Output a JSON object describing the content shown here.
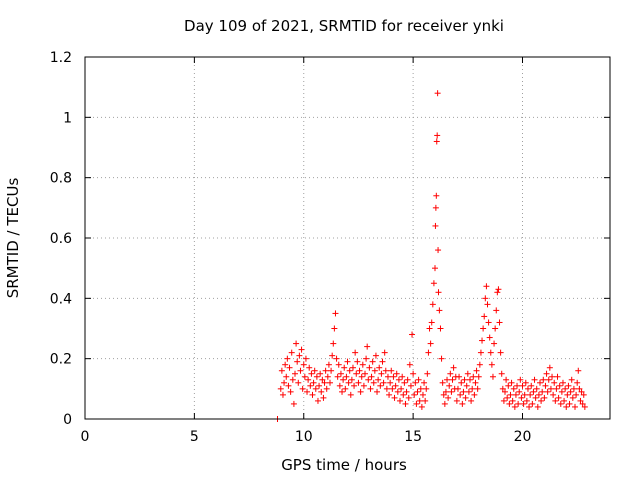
{
  "chart_data": {
    "type": "scatter",
    "title": "Day 109 of 2021, SRMTID for receiver ynki",
    "xlabel": "GPS time / hours",
    "ylabel": "SRMTID / TECUs",
    "xlim": [
      0,
      24
    ],
    "ylim": [
      0,
      1.2
    ],
    "xticks": [
      0,
      5,
      10,
      15,
      20
    ],
    "xtick_labels": [
      "0",
      "5",
      "10",
      "15",
      "20"
    ],
    "yticks": [
      0,
      0.2,
      0.4,
      0.6,
      0.8,
      1.0,
      1.2
    ],
    "ytick_labels": [
      "0",
      "0.2",
      "0.4",
      "0.6",
      "0.8",
      "1",
      "1.2"
    ],
    "grid": true,
    "marker": "plus",
    "color": "#ff0000",
    "series": [
      {
        "name": "SRMTID",
        "points": [
          [
            8.8,
            0.0
          ],
          [
            8.95,
            0.1
          ],
          [
            9.0,
            0.16
          ],
          [
            9.05,
            0.08
          ],
          [
            9.1,
            0.12
          ],
          [
            9.15,
            0.18
          ],
          [
            9.2,
            0.14
          ],
          [
            9.25,
            0.2
          ],
          [
            9.3,
            0.11
          ],
          [
            9.35,
            0.17
          ],
          [
            9.4,
            0.09
          ],
          [
            9.45,
            0.22
          ],
          [
            9.5,
            0.13
          ],
          [
            9.55,
            0.05
          ],
          [
            9.6,
            0.15
          ],
          [
            9.65,
            0.25
          ],
          [
            9.7,
            0.19
          ],
          [
            9.75,
            0.12
          ],
          [
            9.8,
            0.21
          ],
          [
            9.85,
            0.16
          ],
          [
            9.9,
            0.23
          ],
          [
            9.95,
            0.1
          ],
          [
            10.0,
            0.18
          ],
          [
            10.05,
            0.14
          ],
          [
            10.1,
            0.2
          ],
          [
            10.15,
            0.09
          ],
          [
            10.2,
            0.13
          ],
          [
            10.25,
            0.17
          ],
          [
            10.3,
            0.11
          ],
          [
            10.35,
            0.15
          ],
          [
            10.4,
            0.08
          ],
          [
            10.45,
            0.12
          ],
          [
            10.5,
            0.16
          ],
          [
            10.55,
            0.1
          ],
          [
            10.6,
            0.14
          ],
          [
            10.65,
            0.06
          ],
          [
            10.7,
            0.11
          ],
          [
            10.75,
            0.15
          ],
          [
            10.8,
            0.09
          ],
          [
            10.85,
            0.13
          ],
          [
            10.9,
            0.07
          ],
          [
            10.95,
            0.12
          ],
          [
            11.0,
            0.16
          ],
          [
            11.05,
            0.1
          ],
          [
            11.1,
            0.14
          ],
          [
            11.15,
            0.18
          ],
          [
            11.2,
            0.12
          ],
          [
            11.25,
            0.16
          ],
          [
            11.3,
            0.21
          ],
          [
            11.35,
            0.25
          ],
          [
            11.4,
            0.3
          ],
          [
            11.45,
            0.35
          ],
          [
            11.5,
            0.2
          ],
          [
            11.55,
            0.14
          ],
          [
            11.6,
            0.18
          ],
          [
            11.65,
            0.11
          ],
          [
            11.7,
            0.15
          ],
          [
            11.75,
            0.09
          ],
          [
            11.8,
            0.13
          ],
          [
            11.85,
            0.17
          ],
          [
            11.9,
            0.1
          ],
          [
            11.95,
            0.14
          ],
          [
            12.0,
            0.19
          ],
          [
            12.05,
            0.12
          ],
          [
            12.1,
            0.16
          ],
          [
            12.15,
            0.08
          ],
          [
            12.2,
            0.13
          ],
          [
            12.25,
            0.17
          ],
          [
            12.3,
            0.11
          ],
          [
            12.35,
            0.22
          ],
          [
            12.4,
            0.15
          ],
          [
            12.45,
            0.19
          ],
          [
            12.5,
            0.12
          ],
          [
            12.55,
            0.16
          ],
          [
            12.6,
            0.09
          ],
          [
            12.65,
            0.14
          ],
          [
            12.7,
            0.18
          ],
          [
            12.75,
            0.11
          ],
          [
            12.8,
            0.15
          ],
          [
            12.85,
            0.2
          ],
          [
            12.9,
            0.24
          ],
          [
            12.95,
            0.13
          ],
          [
            13.0,
            0.17
          ],
          [
            13.05,
            0.1
          ],
          [
            13.1,
            0.14
          ],
          [
            13.15,
            0.19
          ],
          [
            13.2,
            0.12
          ],
          [
            13.25,
            0.16
          ],
          [
            13.3,
            0.21
          ],
          [
            13.35,
            0.09
          ],
          [
            13.4,
            0.13
          ],
          [
            13.45,
            0.17
          ],
          [
            13.5,
            0.11
          ],
          [
            13.55,
            0.15
          ],
          [
            13.6,
            0.19
          ],
          [
            13.65,
            0.12
          ],
          [
            13.7,
            0.22
          ],
          [
            13.75,
            0.16
          ],
          [
            13.8,
            0.1
          ],
          [
            13.85,
            0.14
          ],
          [
            13.9,
            0.08
          ],
          [
            13.95,
            0.12
          ],
          [
            14.0,
            0.16
          ],
          [
            14.05,
            0.1
          ],
          [
            14.1,
            0.14
          ],
          [
            14.15,
            0.07
          ],
          [
            14.2,
            0.11
          ],
          [
            14.25,
            0.15
          ],
          [
            14.3,
            0.09
          ],
          [
            14.35,
            0.13
          ],
          [
            14.4,
            0.06
          ],
          [
            14.45,
            0.1
          ],
          [
            14.5,
            0.14
          ],
          [
            14.55,
            0.08
          ],
          [
            14.6,
            0.12
          ],
          [
            14.65,
            0.05
          ],
          [
            14.7,
            0.09
          ],
          [
            14.75,
            0.13
          ],
          [
            14.8,
            0.07
          ],
          [
            14.85,
            0.18
          ],
          [
            14.9,
            0.11
          ],
          [
            14.95,
            0.28
          ],
          [
            15.0,
            0.15
          ],
          [
            15.05,
            0.08
          ],
          [
            15.1,
            0.12
          ],
          [
            15.15,
            0.05
          ],
          [
            15.2,
            0.09
          ],
          [
            15.25,
            0.13
          ],
          [
            15.3,
            0.06
          ],
          [
            15.35,
            0.1
          ],
          [
            15.4,
            0.04
          ],
          [
            15.45,
            0.08
          ],
          [
            15.5,
            0.12
          ],
          [
            15.55,
            0.06
          ],
          [
            15.6,
            0.1
          ],
          [
            15.65,
            0.15
          ],
          [
            15.7,
            0.22
          ],
          [
            15.75,
            0.3
          ],
          [
            15.8,
            0.25
          ],
          [
            15.85,
            0.32
          ],
          [
            15.9,
            0.38
          ],
          [
            15.95,
            0.45
          ],
          [
            16.0,
            0.5
          ],
          [
            16.02,
            0.64
          ],
          [
            16.04,
            0.7
          ],
          [
            16.06,
            0.74
          ],
          [
            16.08,
            0.92
          ],
          [
            16.1,
            0.94
          ],
          [
            16.12,
            1.08
          ],
          [
            16.14,
            0.56
          ],
          [
            16.16,
            0.42
          ],
          [
            16.2,
            0.36
          ],
          [
            16.25,
            0.3
          ],
          [
            16.3,
            0.2
          ],
          [
            16.35,
            0.12
          ],
          [
            16.4,
            0.08
          ],
          [
            16.45,
            0.05
          ],
          [
            16.5,
            0.09
          ],
          [
            16.55,
            0.13
          ],
          [
            16.6,
            0.07
          ],
          [
            16.65,
            0.11
          ],
          [
            16.7,
            0.15
          ],
          [
            16.75,
            0.09
          ],
          [
            16.8,
            0.13
          ],
          [
            16.85,
            0.17
          ],
          [
            16.9,
            0.1
          ],
          [
            16.95,
            0.14
          ],
          [
            17.0,
            0.06
          ],
          [
            17.05,
            0.1
          ],
          [
            17.1,
            0.14
          ],
          [
            17.15,
            0.08
          ],
          [
            17.2,
            0.12
          ],
          [
            17.25,
            0.05
          ],
          [
            17.3,
            0.09
          ],
          [
            17.35,
            0.13
          ],
          [
            17.4,
            0.07
          ],
          [
            17.45,
            0.11
          ],
          [
            17.5,
            0.15
          ],
          [
            17.55,
            0.09
          ],
          [
            17.6,
            0.13
          ],
          [
            17.65,
            0.06
          ],
          [
            17.7,
            0.1
          ],
          [
            17.75,
            0.14
          ],
          [
            17.8,
            0.08
          ],
          [
            17.85,
            0.12
          ],
          [
            17.9,
            0.16
          ],
          [
            17.95,
            0.1
          ],
          [
            18.0,
            0.14
          ],
          [
            18.05,
            0.18
          ],
          [
            18.1,
            0.22
          ],
          [
            18.15,
            0.26
          ],
          [
            18.2,
            0.3
          ],
          [
            18.25,
            0.34
          ],
          [
            18.3,
            0.4
          ],
          [
            18.35,
            0.44
          ],
          [
            18.4,
            0.38
          ],
          [
            18.45,
            0.32
          ],
          [
            18.5,
            0.27
          ],
          [
            18.55,
            0.22
          ],
          [
            18.6,
            0.18
          ],
          [
            18.65,
            0.14
          ],
          [
            18.7,
            0.25
          ],
          [
            18.75,
            0.3
          ],
          [
            18.8,
            0.36
          ],
          [
            18.85,
            0.42
          ],
          [
            18.9,
            0.43
          ],
          [
            18.95,
            0.32
          ],
          [
            19.0,
            0.22
          ],
          [
            19.05,
            0.15
          ],
          [
            19.1,
            0.1
          ],
          [
            19.15,
            0.06
          ],
          [
            19.2,
            0.09
          ],
          [
            19.25,
            0.13
          ],
          [
            19.3,
            0.07
          ],
          [
            19.35,
            0.11
          ],
          [
            19.4,
            0.05
          ],
          [
            19.45,
            0.08
          ],
          [
            19.5,
            0.12
          ],
          [
            19.55,
            0.06
          ],
          [
            19.6,
            0.1
          ],
          [
            19.65,
            0.04
          ],
          [
            19.7,
            0.08
          ],
          [
            19.75,
            0.11
          ],
          [
            19.8,
            0.05
          ],
          [
            19.85,
            0.09
          ],
          [
            19.9,
            0.13
          ],
          [
            19.95,
            0.07
          ],
          [
            20.0,
            0.11
          ],
          [
            20.05,
            0.05
          ],
          [
            20.1,
            0.08
          ],
          [
            20.15,
            0.12
          ],
          [
            20.2,
            0.06
          ],
          [
            20.25,
            0.1
          ],
          [
            20.3,
            0.04
          ],
          [
            20.35,
            0.08
          ],
          [
            20.4,
            0.11
          ],
          [
            20.45,
            0.05
          ],
          [
            20.5,
            0.09
          ],
          [
            20.55,
            0.13
          ],
          [
            20.6,
            0.07
          ],
          [
            20.65,
            0.1
          ],
          [
            20.7,
            0.04
          ],
          [
            20.75,
            0.08
          ],
          [
            20.8,
            0.12
          ],
          [
            20.85,
            0.06
          ],
          [
            20.9,
            0.09
          ],
          [
            20.95,
            0.13
          ],
          [
            21.0,
            0.07
          ],
          [
            21.05,
            0.11
          ],
          [
            21.1,
            0.15
          ],
          [
            21.15,
            0.09
          ],
          [
            21.2,
            0.13
          ],
          [
            21.25,
            0.17
          ],
          [
            21.3,
            0.1
          ],
          [
            21.35,
            0.14
          ],
          [
            21.4,
            0.08
          ],
          [
            21.45,
            0.12
          ],
          [
            21.5,
            0.06
          ],
          [
            21.55,
            0.1
          ],
          [
            21.6,
            0.14
          ],
          [
            21.65,
            0.07
          ],
          [
            21.7,
            0.11
          ],
          [
            21.75,
            0.05
          ],
          [
            21.8,
            0.09
          ],
          [
            21.85,
            0.12
          ],
          [
            21.9,
            0.06
          ],
          [
            21.95,
            0.1
          ],
          [
            22.0,
            0.04
          ],
          [
            22.05,
            0.08
          ],
          [
            22.1,
            0.11
          ],
          [
            22.15,
            0.05
          ],
          [
            22.2,
            0.09
          ],
          [
            22.25,
            0.13
          ],
          [
            22.3,
            0.07
          ],
          [
            22.35,
            0.1
          ],
          [
            22.4,
            0.04
          ],
          [
            22.45,
            0.08
          ],
          [
            22.5,
            0.12
          ],
          [
            22.55,
            0.16
          ],
          [
            22.6,
            0.1
          ],
          [
            22.65,
            0.06
          ],
          [
            22.7,
            0.09
          ],
          [
            22.75,
            0.05
          ],
          [
            22.8,
            0.08
          ],
          [
            22.85,
            0.04
          ]
        ]
      }
    ]
  }
}
